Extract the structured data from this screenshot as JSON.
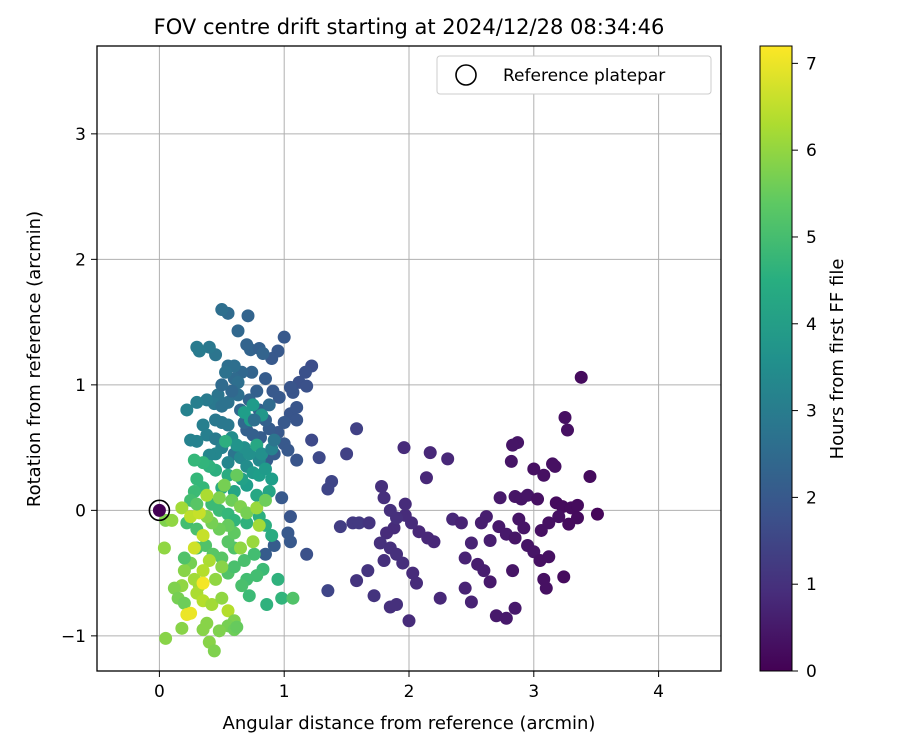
{
  "chart_data": {
    "type": "scatter",
    "title": "FOV centre drift starting at 2024/12/28 08:34:46",
    "xlabel": "Angular distance from reference (arcmin)",
    "ylabel": "Rotation from reference (arcmin)",
    "xlim": [
      -0.5,
      4.5
    ],
    "ylim": [
      -1.28,
      3.7
    ],
    "xticks": [
      0,
      1,
      2,
      3,
      4
    ],
    "xticklabels": [
      "0",
      "1",
      "2",
      "3",
      "4"
    ],
    "yticks": [
      -1,
      0,
      1,
      2,
      3
    ],
    "yticklabels": [
      "−1",
      "0",
      "1",
      "2",
      "3"
    ],
    "grid": true,
    "legend": {
      "position": "top-right",
      "entries": [
        "Reference platepar"
      ]
    },
    "reference_point": {
      "x": 0,
      "y": 0,
      "label": "Reference platepar"
    },
    "colorbar": {
      "label": "Hours from first FF file",
      "colormap": "viridis",
      "range": [
        0,
        7.2
      ],
      "ticks": [
        0,
        1,
        2,
        3,
        4,
        5,
        6,
        7
      ],
      "ticklabels": [
        "0",
        "1",
        "2",
        "3",
        "4",
        "5",
        "6",
        "7"
      ]
    },
    "points": [
      [
        3.38,
        1.06,
        0.2
      ],
      [
        3.25,
        0.74,
        0.3
      ],
      [
        3.27,
        0.64,
        0.3
      ],
      [
        2.87,
        0.54,
        0.4
      ],
      [
        2.83,
        0.52,
        0.4
      ],
      [
        2.82,
        0.39,
        0.4
      ],
      [
        3.0,
        0.33,
        0.3
      ],
      [
        3.08,
        0.28,
        0.3
      ],
      [
        3.15,
        0.37,
        0.3
      ],
      [
        3.17,
        0.35,
        0.3
      ],
      [
        3.45,
        0.27,
        0.2
      ],
      [
        2.73,
        0.1,
        0.5
      ],
      [
        2.85,
        0.11,
        0.4
      ],
      [
        2.9,
        0.09,
        0.4
      ],
      [
        2.95,
        0.12,
        0.4
      ],
      [
        3.03,
        0.09,
        0.3
      ],
      [
        3.18,
        0.06,
        0.2
      ],
      [
        3.23,
        0.03,
        0.2
      ],
      [
        3.3,
        0.02,
        0.2
      ],
      [
        3.35,
        0.04,
        0.2
      ],
      [
        3.51,
        -0.03,
        0.1
      ],
      [
        2.62,
        -0.05,
        0.6
      ],
      [
        2.58,
        -0.1,
        0.6
      ],
      [
        2.72,
        -0.13,
        0.5
      ],
      [
        2.78,
        -0.19,
        0.5
      ],
      [
        2.85,
        -0.22,
        0.4
      ],
      [
        2.88,
        -0.07,
        0.4
      ],
      [
        2.92,
        -0.14,
        0.4
      ],
      [
        3.06,
        -0.16,
        0.3
      ],
      [
        3.12,
        -0.1,
        0.3
      ],
      [
        3.2,
        -0.05,
        0.3
      ],
      [
        3.28,
        -0.11,
        0.2
      ],
      [
        3.35,
        -0.06,
        0.2
      ],
      [
        2.95,
        -0.28,
        0.4
      ],
      [
        3.0,
        -0.33,
        0.4
      ],
      [
        3.05,
        -0.4,
        0.3
      ],
      [
        3.12,
        -0.37,
        0.3
      ],
      [
        2.83,
        -0.48,
        0.4
      ],
      [
        3.08,
        -0.55,
        0.3
      ],
      [
        3.1,
        -0.62,
        0.3
      ],
      [
        3.24,
        -0.53,
        0.2
      ],
      [
        2.65,
        -0.57,
        0.5
      ],
      [
        2.6,
        -0.48,
        0.6
      ],
      [
        2.55,
        -0.43,
        0.6
      ],
      [
        2.45,
        -0.38,
        0.7
      ],
      [
        2.5,
        -0.26,
        0.7
      ],
      [
        2.65,
        -0.24,
        0.6
      ],
      [
        2.7,
        -0.84,
        0.5
      ],
      [
        2.78,
        -0.86,
        0.5
      ],
      [
        2.85,
        -0.78,
        0.5
      ],
      [
        2.45,
        -0.62,
        0.7
      ],
      [
        2.5,
        -0.73,
        0.7
      ],
      [
        2.31,
        0.41,
        0.8
      ],
      [
        2.17,
        0.46,
        0.8
      ],
      [
        1.96,
        0.5,
        0.9
      ],
      [
        2.14,
        0.26,
        0.8
      ],
      [
        2.35,
        -0.07,
        0.8
      ],
      [
        2.42,
        -0.1,
        0.7
      ],
      [
        2.2,
        -0.25,
        0.8
      ],
      [
        2.15,
        -0.22,
        0.8
      ],
      [
        2.08,
        -0.17,
        0.8
      ],
      [
        2.02,
        -0.1,
        0.9
      ],
      [
        1.97,
        -0.04,
        0.9
      ],
      [
        1.88,
        -0.14,
        0.9
      ],
      [
        1.82,
        -0.18,
        0.9
      ],
      [
        1.77,
        -0.26,
        1.0
      ],
      [
        1.85,
        -0.3,
        1.0
      ],
      [
        1.9,
        -0.35,
        1.0
      ],
      [
        1.8,
        -0.4,
        1.0
      ],
      [
        1.95,
        -0.42,
        1.0
      ],
      [
        2.03,
        -0.5,
        0.9
      ],
      [
        2.06,
        -0.58,
        0.9
      ],
      [
        1.72,
        -0.68,
        1.1
      ],
      [
        1.85,
        -0.77,
        1.0
      ],
      [
        1.9,
        -0.75,
        1.0
      ],
      [
        2.0,
        -0.88,
        0.9
      ],
      [
        2.25,
        -0.7,
        0.8
      ],
      [
        1.67,
        -0.48,
        1.1
      ],
      [
        1.58,
        -0.56,
        1.1
      ],
      [
        1.55,
        -0.1,
        1.2
      ],
      [
        1.6,
        -0.1,
        1.2
      ],
      [
        1.68,
        -0.1,
        1.1
      ],
      [
        1.45,
        -0.13,
        1.3
      ],
      [
        1.78,
        0.19,
        1.0
      ],
      [
        1.8,
        0.1,
        1.0
      ],
      [
        1.85,
        0.0,
        1.0
      ],
      [
        1.97,
        0.05,
        0.9
      ],
      [
        1.9,
        -0.06,
        1.0
      ],
      [
        1.5,
        0.45,
        1.4
      ],
      [
        1.58,
        0.65,
        1.4
      ],
      [
        1.38,
        0.23,
        1.5
      ],
      [
        1.35,
        0.17,
        1.5
      ],
      [
        1.35,
        -0.64,
        1.5
      ],
      [
        1.22,
        0.56,
        1.6
      ],
      [
        1.28,
        0.42,
        1.6
      ],
      [
        1.22,
        1.15,
        1.7
      ],
      [
        1.17,
        1.1,
        1.8
      ],
      [
        1.12,
        1.02,
        1.8
      ],
      [
        1.18,
        0.99,
        1.8
      ],
      [
        1.07,
        0.94,
        1.9
      ],
      [
        1.0,
        1.38,
        2.0
      ],
      [
        0.95,
        1.27,
        2.0
      ],
      [
        0.9,
        1.21,
        2.0
      ],
      [
        0.85,
        1.05,
        2.1
      ],
      [
        0.91,
        0.95,
        2.0
      ],
      [
        0.96,
        0.9,
        2.0
      ],
      [
        1.05,
        0.77,
        1.9
      ],
      [
        1.1,
        0.72,
        1.9
      ],
      [
        1.0,
        0.7,
        2.0
      ],
      [
        0.95,
        0.62,
        2.0
      ],
      [
        0.88,
        0.65,
        2.1
      ],
      [
        0.81,
        0.58,
        2.1
      ],
      [
        0.75,
        0.6,
        2.2
      ],
      [
        0.7,
        0.64,
        2.2
      ],
      [
        1.0,
        0.53,
        2.0
      ],
      [
        1.03,
        0.48,
        2.0
      ],
      [
        1.1,
        0.4,
        1.9
      ],
      [
        0.86,
        0.4,
        2.1
      ],
      [
        0.92,
        0.45,
        2.1
      ],
      [
        0.73,
        1.28,
        2.3
      ],
      [
        0.8,
        1.29,
        2.2
      ],
      [
        0.7,
        1.32,
        2.3
      ],
      [
        0.63,
        1.43,
        2.4
      ],
      [
        0.71,
        1.55,
        2.3
      ],
      [
        0.55,
        1.57,
        2.5
      ],
      [
        0.83,
        1.25,
        2.3
      ],
      [
        0.74,
        1.1,
        2.3
      ],
      [
        0.66,
        1.1,
        2.4
      ],
      [
        0.6,
        1.05,
        2.5
      ],
      [
        0.78,
        0.95,
        2.2
      ],
      [
        0.72,
        0.88,
        2.3
      ],
      [
        0.65,
        0.8,
        2.4
      ],
      [
        0.8,
        0.8,
        2.2
      ],
      [
        0.85,
        0.72,
        2.2
      ],
      [
        0.68,
        0.7,
        2.4
      ],
      [
        1.05,
        -0.05,
        1.9
      ],
      [
        1.18,
        -0.35,
        1.8
      ],
      [
        1.05,
        -0.25,
        2.0
      ],
      [
        1.03,
        -0.18,
        2.0
      ],
      [
        0.98,
        0.1,
        2.0
      ],
      [
        0.92,
        -0.28,
        2.1
      ],
      [
        0.85,
        -0.35,
        2.1
      ],
      [
        1.05,
        0.98,
        1.9
      ],
      [
        1.1,
        0.82,
        1.9
      ],
      [
        0.5,
        1.6,
        2.6
      ],
      [
        0.45,
        1.24,
        2.8
      ],
      [
        0.4,
        1.3,
        2.9
      ],
      [
        0.3,
        1.3,
        3.0
      ],
      [
        0.32,
        1.27,
        3.0
      ],
      [
        0.55,
        1.15,
        2.6
      ],
      [
        0.6,
        1.15,
        2.6
      ],
      [
        0.63,
        1.02,
        2.6
      ],
      [
        0.53,
        1.1,
        2.7
      ],
      [
        0.47,
        0.92,
        2.8
      ],
      [
        0.44,
        0.85,
        2.9
      ],
      [
        0.38,
        0.88,
        3.0
      ],
      [
        0.3,
        0.86,
        3.1
      ],
      [
        0.22,
        0.8,
        3.2
      ],
      [
        0.5,
        0.83,
        2.7
      ],
      [
        0.55,
        0.86,
        2.7
      ],
      [
        0.63,
        0.92,
        2.6
      ],
      [
        0.45,
        0.72,
        2.9
      ],
      [
        0.5,
        0.7,
        2.9
      ],
      [
        0.55,
        0.68,
        2.9
      ],
      [
        0.35,
        0.68,
        3.1
      ],
      [
        0.38,
        0.6,
        3.1
      ],
      [
        0.45,
        0.57,
        3.0
      ],
      [
        0.3,
        0.55,
        3.2
      ],
      [
        0.25,
        0.56,
        3.2
      ],
      [
        0.6,
        0.45,
        2.8
      ],
      [
        0.5,
        0.5,
        3.2
      ],
      [
        0.45,
        0.45,
        3.3
      ],
      [
        0.4,
        0.44,
        3.3
      ],
      [
        0.55,
        0.38,
        3.3
      ],
      [
        0.65,
        0.42,
        3.4
      ],
      [
        0.7,
        0.35,
        3.5
      ],
      [
        0.8,
        0.4,
        3.4
      ],
      [
        0.72,
        0.45,
        3.6
      ],
      [
        0.68,
        0.5,
        3.6
      ],
      [
        0.58,
        0.58,
        3.5
      ],
      [
        0.62,
        0.52,
        3.7
      ],
      [
        0.75,
        0.3,
        3.9
      ],
      [
        0.7,
        0.2,
        4.0
      ],
      [
        0.8,
        0.28,
        4.0
      ],
      [
        0.85,
        0.33,
        3.9
      ],
      [
        0.9,
        0.25,
        4.0
      ],
      [
        0.66,
        0.25,
        4.1
      ],
      [
        0.6,
        0.15,
        4.2
      ],
      [
        0.88,
        0.15,
        4.2
      ],
      [
        0.78,
        0.12,
        4.3
      ],
      [
        0.82,
        0.76,
        3.8
      ],
      [
        0.75,
        0.84,
        3.9
      ],
      [
        0.73,
        0.72,
        4.0
      ],
      [
        0.68,
        0.78,
        4.0
      ],
      [
        0.5,
        0.18,
        4.4
      ],
      [
        0.55,
        0.28,
        4.4
      ],
      [
        0.45,
        0.32,
        4.5
      ],
      [
        0.4,
        0.35,
        4.6
      ],
      [
        0.35,
        0.38,
        4.7
      ],
      [
        0.28,
        0.4,
        4.8
      ],
      [
        0.3,
        0.25,
        4.8
      ],
      [
        0.35,
        0.18,
        4.8
      ],
      [
        0.42,
        0.05,
        4.9
      ],
      [
        0.48,
        0.0,
        4.9
      ],
      [
        0.55,
        -0.03,
        4.8
      ],
      [
        0.6,
        -0.08,
        4.7
      ],
      [
        0.7,
        -0.1,
        4.6
      ],
      [
        0.8,
        -0.05,
        4.5
      ],
      [
        0.85,
        -0.12,
        4.5
      ],
      [
        0.9,
        -0.2,
        4.4
      ],
      [
        0.28,
        0.15,
        4.9
      ],
      [
        0.25,
        0.08,
        5.0
      ],
      [
        0.22,
        -0.1,
        5.0
      ],
      [
        0.3,
        -0.15,
        5.1
      ],
      [
        0.3,
        -0.3,
        5.1
      ],
      [
        0.37,
        -0.28,
        5.2
      ],
      [
        0.43,
        -0.35,
        5.3
      ],
      [
        0.5,
        -0.38,
        5.3
      ],
      [
        0.55,
        -0.5,
        5.2
      ],
      [
        0.6,
        -0.45,
        5.1
      ],
      [
        0.68,
        -0.4,
        5.1
      ],
      [
        0.76,
        -0.35,
        5.0
      ],
      [
        0.83,
        -0.47,
        4.9
      ],
      [
        0.78,
        -0.52,
        5.0
      ],
      [
        0.7,
        -0.55,
        5.0
      ],
      [
        0.66,
        -0.6,
        5.1
      ],
      [
        0.72,
        -0.68,
        4.9
      ],
      [
        0.86,
        -0.75,
        4.6
      ],
      [
        0.95,
        -0.55,
        4.6
      ],
      [
        0.98,
        -0.7,
        4.7
      ],
      [
        1.07,
        -0.7,
        5.2
      ],
      [
        0.6,
        -0.3,
        5.2
      ],
      [
        0.55,
        -0.25,
        5.3
      ],
      [
        0.6,
        -0.18,
        5.4
      ],
      [
        0.55,
        -0.12,
        5.5
      ],
      [
        0.48,
        -0.15,
        5.6
      ],
      [
        0.42,
        -0.1,
        5.7
      ],
      [
        0.38,
        -0.05,
        5.9
      ],
      [
        0.48,
        0.1,
        5.8
      ],
      [
        0.52,
        0.2,
        5.7
      ],
      [
        0.58,
        0.08,
        5.6
      ],
      [
        0.65,
        0.03,
        5.8
      ],
      [
        0.7,
        -0.02,
        5.7
      ],
      [
        0.78,
        0.02,
        6.1
      ],
      [
        0.8,
        -0.12,
        6.2
      ],
      [
        0.85,
        0.08,
        5.6
      ],
      [
        0.75,
        -0.25,
        6.1
      ],
      [
        0.65,
        -0.3,
        6.0
      ],
      [
        0.5,
        -0.45,
        5.9
      ],
      [
        0.45,
        -0.55,
        6.0
      ],
      [
        0.4,
        -0.4,
        6.3
      ],
      [
        0.35,
        -0.48,
        6.4
      ],
      [
        0.32,
        -0.6,
        6.2
      ],
      [
        0.28,
        -0.55,
        6.2
      ],
      [
        0.25,
        -0.42,
        5.7
      ],
      [
        0.2,
        -0.48,
        5.9
      ],
      [
        0.18,
        -0.6,
        6.0
      ],
      [
        0.12,
        -0.62,
        5.8
      ],
      [
        0.15,
        -0.7,
        5.7
      ],
      [
        0.2,
        -0.74,
        5.6
      ],
      [
        0.3,
        -0.66,
        6.3
      ],
      [
        0.35,
        -0.72,
        6.4
      ],
      [
        0.42,
        -0.75,
        6.2
      ],
      [
        0.5,
        -0.7,
        6.0
      ],
      [
        0.55,
        -0.8,
        6.4
      ],
      [
        0.6,
        -0.88,
        5.8
      ],
      [
        0.55,
        -0.92,
        5.7
      ],
      [
        0.48,
        -0.96,
        5.8
      ],
      [
        0.38,
        -0.9,
        5.9
      ],
      [
        0.35,
        -0.95,
        5.9
      ],
      [
        0.4,
        -1.05,
        5.9
      ],
      [
        0.44,
        -1.12,
        5.8
      ],
      [
        0.18,
        -0.94,
        5.9
      ],
      [
        0.05,
        -1.02,
        5.9
      ],
      [
        0.04,
        -0.3,
        6.0
      ],
      [
        0.05,
        -0.08,
        5.8
      ],
      [
        0.1,
        -0.08,
        6.0
      ],
      [
        0.18,
        0.02,
        6.2
      ],
      [
        0.25,
        -0.05,
        6.5
      ],
      [
        0.32,
        -0.02,
        6.6
      ],
      [
        0.35,
        -0.2,
        6.6
      ],
      [
        0.28,
        -0.3,
        6.7
      ],
      [
        0.35,
        -0.58,
        7.1
      ],
      [
        0.22,
        -0.83,
        7.0
      ],
      [
        0.25,
        -0.82,
        7.0
      ],
      [
        0.6,
        -0.95,
        5.6
      ],
      [
        0.62,
        -0.93,
        5.5
      ],
      [
        0.2,
        -0.38,
        5.2
      ],
      [
        0.3,
        0.05,
        5.3
      ],
      [
        0.38,
        0.12,
        6.3
      ],
      [
        0.62,
        0.28,
        5.5
      ],
      [
        0.78,
        0.52,
        4.3
      ],
      [
        0.82,
        0.45,
        3.6
      ],
      [
        0.53,
        0.55,
        4.5
      ],
      [
        0.9,
        0.49,
        3.2
      ],
      [
        0.92,
        0.56,
        2.8
      ],
      [
        0.88,
        0.84,
        2.5
      ],
      [
        0.76,
        0.72,
        2.6
      ],
      [
        0.58,
        0.95,
        2.4
      ],
      [
        0.5,
        1.0,
        2.5
      ]
    ]
  }
}
